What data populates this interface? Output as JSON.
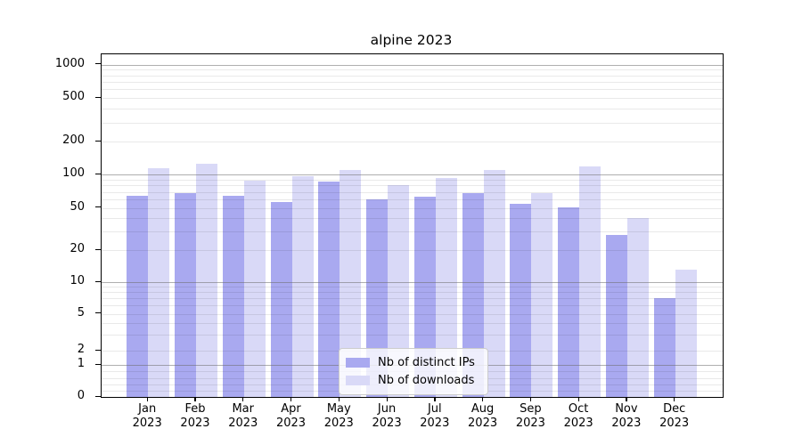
{
  "title": "alpine 2023",
  "chart_data": {
    "type": "bar",
    "title": "alpine 2023",
    "x_axis": {
      "months": [
        "Jan",
        "Feb",
        "Mar",
        "Apr",
        "May",
        "Jun",
        "Jul",
        "Aug",
        "Sep",
        "Oct",
        "Nov",
        "Dec"
      ],
      "year": "2023"
    },
    "y_axis": {
      "scale": "symlog",
      "ticks": [
        1000,
        500,
        200,
        100,
        50,
        20,
        10,
        5,
        2,
        1,
        0
      ],
      "major_gridlines": [
        1,
        10,
        100,
        1000
      ],
      "minor_gridlines": [
        0.2,
        0.4,
        0.6,
        0.8,
        2,
        3,
        4,
        5,
        6,
        7,
        8,
        9,
        20,
        30,
        40,
        50,
        60,
        70,
        80,
        90,
        200,
        300,
        400,
        500,
        600,
        700,
        800,
        900
      ],
      "ylim": [
        0,
        1250
      ],
      "grid": true
    },
    "series": [
      {
        "name": "Nb of distinct IPs",
        "color": "#a9a9f0",
        "values": [
          65,
          68,
          65,
          57,
          87,
          60,
          63,
          68,
          55,
          51,
          28,
          7
        ]
      },
      {
        "name": "Nb of downloads",
        "color": "#d9d9f7",
        "values": [
          114,
          126,
          89,
          98,
          110,
          80,
          93,
          110,
          68,
          119,
          40,
          13
        ]
      }
    ],
    "legend": {
      "position": "lower center",
      "entries": [
        "Nb of distinct IPs",
        "Nb of downloads"
      ]
    }
  }
}
